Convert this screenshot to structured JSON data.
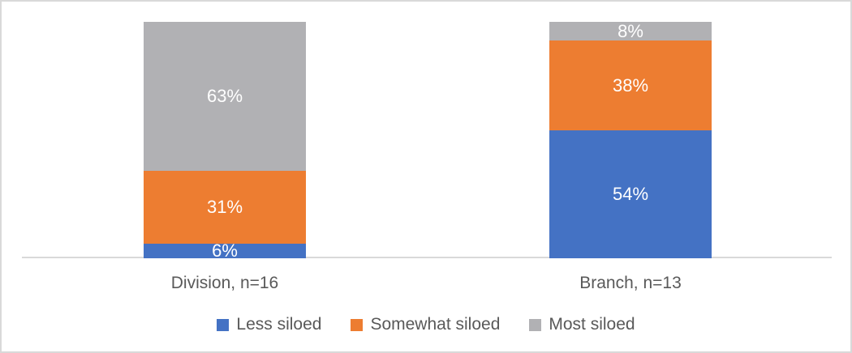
{
  "chart_data": {
    "type": "bar",
    "subtype": "stacked-100-column",
    "title": "",
    "xlabel": "",
    "ylabel": "",
    "categories": [
      "Division, n=16",
      "Branch, n=13"
    ],
    "series": [
      {
        "name": "Less siloed",
        "color": "#4472C4",
        "values": [
          6,
          54
        ]
      },
      {
        "name": "Somewhat siloed",
        "color": "#ED7D31",
        "values": [
          31,
          38
        ]
      },
      {
        "name": "Most siloed",
        "color": "#B1B1B4",
        "values": [
          63,
          8
        ]
      }
    ],
    "value_labels": [
      [
        "6%",
        "31%",
        "63%"
      ],
      [
        "54%",
        "38%",
        "8%"
      ]
    ],
    "ylim": [
      0,
      100
    ],
    "gridlines": false,
    "legend_position": "bottom",
    "colors": {
      "value_label_text": "#FFFFFF",
      "axis_text": "#595959",
      "axis_line": "#D9D9D9",
      "frame_border": "#D9D9D9",
      "background": "#FFFFFF"
    }
  }
}
